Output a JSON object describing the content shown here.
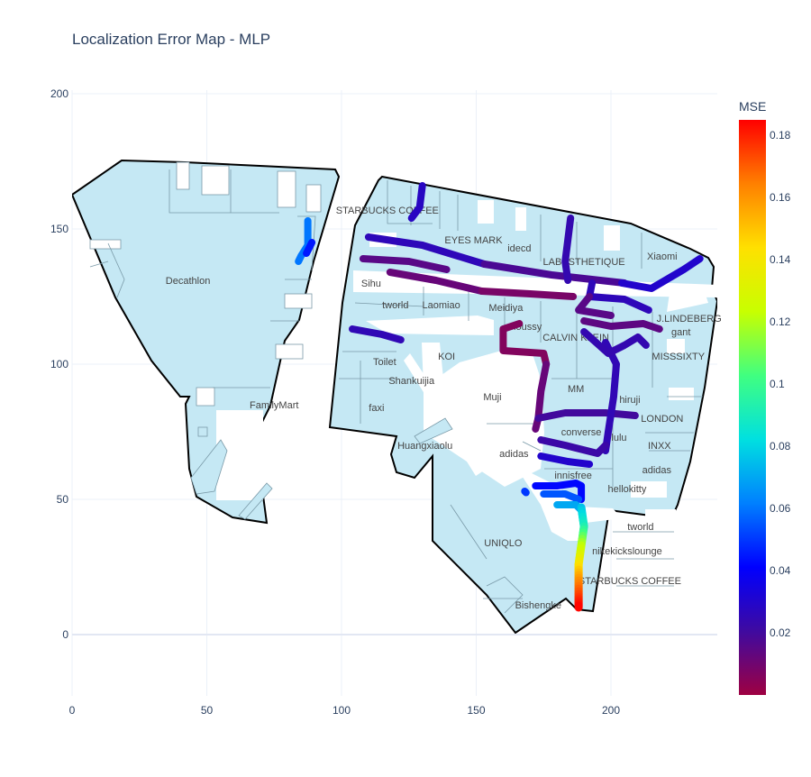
{
  "chart_data": {
    "type": "scatter",
    "title": "Localization Error Map - MLP",
    "xlim": [
      0,
      240
    ],
    "ylim": [
      -25,
      202
    ],
    "x_ticks": [
      0,
      50,
      100,
      150,
      200
    ],
    "y_ticks": [
      0,
      50,
      100,
      150,
      200
    ],
    "grid": true,
    "colorbar": {
      "title": "MSE",
      "min": 0.0,
      "max": 0.185,
      "ticks": [
        0.02,
        0.04,
        0.06,
        0.08,
        0.1,
        0.12,
        0.14,
        0.16,
        0.18
      ],
      "tick_labels": [
        "0.02",
        "0.04",
        "0.06",
        "0.08",
        "0.1",
        "0.12",
        "0.14",
        "0.16",
        "0.18"
      ],
      "colorscale": [
        "#9e0142",
        "#3f0aa0",
        "#0000ff",
        "#0080ff",
        "#00e0e0",
        "#40ff80",
        "#c8ff00",
        "#ffe000",
        "#ff8000",
        "#ff0000"
      ]
    },
    "store_labels": [
      {
        "text": "STARBUCKS COFFEE",
        "x": 117,
        "y": 157
      },
      {
        "text": "EYES MARK",
        "x": 149,
        "y": 146
      },
      {
        "text": "idecd",
        "x": 166,
        "y": 143
      },
      {
        "text": "LABESTHETIQUE",
        "x": 190,
        "y": 138
      },
      {
        "text": "Xiaomi",
        "x": 219,
        "y": 140
      },
      {
        "text": "Decathlon",
        "x": 43,
        "y": 131
      },
      {
        "text": "Sihu",
        "x": 111,
        "y": 130
      },
      {
        "text": "tworld",
        "x": 120,
        "y": 122
      },
      {
        "text": "Laomiao",
        "x": 137,
        "y": 122
      },
      {
        "text": "Meidiya",
        "x": 161,
        "y": 121
      },
      {
        "text": "J.LINDEBERG",
        "x": 229,
        "y": 117
      },
      {
        "text": "gant",
        "x": 226,
        "y": 112
      },
      {
        "text": "moussy",
        "x": 168,
        "y": 114
      },
      {
        "text": "CALVIN KLEIN",
        "x": 187,
        "y": 110
      },
      {
        "text": "KOI",
        "x": 139,
        "y": 103
      },
      {
        "text": "MISSSIXTY",
        "x": 225,
        "y": 103
      },
      {
        "text": "Toilet",
        "x": 116,
        "y": 101
      },
      {
        "text": "Shankuijia",
        "x": 126,
        "y": 94
      },
      {
        "text": "MM",
        "x": 187,
        "y": 91
      },
      {
        "text": "Muji",
        "x": 156,
        "y": 88
      },
      {
        "text": "hiruji",
        "x": 207,
        "y": 87
      },
      {
        "text": "FamilyMart",
        "x": 75,
        "y": 85
      },
      {
        "text": "faxi",
        "x": 113,
        "y": 84
      },
      {
        "text": "LONDON",
        "x": 219,
        "y": 80
      },
      {
        "text": "converse",
        "x": 189,
        "y": 75
      },
      {
        "text": "lulu",
        "x": 203,
        "y": 73
      },
      {
        "text": "Huangxiaolu",
        "x": 131,
        "y": 70
      },
      {
        "text": "INXX",
        "x": 218,
        "y": 70
      },
      {
        "text": "adidas",
        "x": 164,
        "y": 67
      },
      {
        "text": "adidas",
        "x": 217,
        "y": 61
      },
      {
        "text": "innisfree",
        "x": 186,
        "y": 59
      },
      {
        "text": "hellokitty",
        "x": 206,
        "y": 54
      },
      {
        "text": "tworld",
        "x": 211,
        "y": 40
      },
      {
        "text": "nikekickslounge",
        "x": 206,
        "y": 31
      },
      {
        "text": "UNIQLO",
        "x": 160,
        "y": 34
      },
      {
        "text": "STARBUCKS COFFEE",
        "x": 207,
        "y": 20
      },
      {
        "text": "Bishengke",
        "x": 173,
        "y": 11
      }
    ],
    "trajectories": [
      {
        "mse": 0.06,
        "points": [
          [
            87.5,
            153
          ],
          [
            87.5,
            144
          ],
          [
            85,
            140
          ],
          [
            84,
            138
          ]
        ]
      },
      {
        "mse": 0.045,
        "points": [
          [
            89,
            145
          ],
          [
            87,
            141
          ]
        ]
      },
      {
        "mse": 0.028,
        "points": [
          [
            130,
            166
          ],
          [
            129,
            158
          ],
          [
            126,
            154
          ]
        ]
      },
      {
        "mse": 0.026,
        "points": [
          [
            110,
            147
          ],
          [
            130,
            144
          ],
          [
            153,
            137
          ]
        ]
      },
      {
        "mse": 0.018,
        "points": [
          [
            153,
            137
          ],
          [
            178,
            133
          ],
          [
            196,
            131
          ],
          [
            205,
            130
          ]
        ]
      },
      {
        "mse": 0.015,
        "points": [
          [
            108,
            139
          ],
          [
            125,
            138
          ],
          [
            139,
            135
          ]
        ]
      },
      {
        "mse": 0.012,
        "points": [
          [
            118,
            134
          ],
          [
            135,
            131
          ],
          [
            152,
            127
          ]
        ]
      },
      {
        "mse": 0.008,
        "points": [
          [
            152,
            127
          ],
          [
            170,
            126
          ],
          [
            186,
            125
          ]
        ]
      },
      {
        "mse": 0.025,
        "points": [
          [
            104,
            113
          ],
          [
            115,
            111
          ],
          [
            122,
            109
          ]
        ]
      },
      {
        "mse": 0.024,
        "points": [
          [
            185,
            154
          ],
          [
            184,
            146
          ],
          [
            183,
            138
          ],
          [
            184,
            131
          ]
        ]
      },
      {
        "mse": 0.03,
        "points": [
          [
            204,
            130
          ],
          [
            215,
            128
          ],
          [
            227,
            135
          ],
          [
            233,
            139
          ]
        ]
      },
      {
        "mse": 0.026,
        "points": [
          [
            193,
            130
          ],
          [
            192,
            125
          ],
          [
            205,
            124
          ],
          [
            214,
            120
          ]
        ]
      },
      {
        "mse": 0.015,
        "points": [
          [
            192,
            125
          ],
          [
            188,
            120
          ],
          [
            200,
            118
          ]
        ]
      },
      {
        "mse": 0.014,
        "points": [
          [
            190,
            116
          ],
          [
            200,
            114
          ],
          [
            212,
            115
          ],
          [
            218,
            113
          ]
        ]
      },
      {
        "mse": 0.006,
        "points": [
          [
            166,
            115
          ],
          [
            160,
            113
          ],
          [
            160,
            105
          ],
          [
            175,
            104
          ],
          [
            176,
            100
          ]
        ]
      },
      {
        "mse": 0.012,
        "points": [
          [
            176,
            100
          ],
          [
            174,
            90
          ],
          [
            173,
            80
          ],
          [
            172,
            76
          ]
        ]
      },
      {
        "mse": 0.02,
        "points": [
          [
            173,
            80
          ],
          [
            183,
            82
          ],
          [
            198,
            82
          ],
          [
            209,
            81
          ]
        ]
      },
      {
        "mse": 0.025,
        "points": [
          [
            198,
            108
          ],
          [
            202,
            100
          ],
          [
            201,
            88
          ],
          [
            199,
            75
          ],
          [
            198,
            68
          ]
        ]
      },
      {
        "mse": 0.024,
        "points": [
          [
            190,
            112
          ],
          [
            199,
            104
          ],
          [
            205,
            107
          ],
          [
            210,
            110
          ],
          [
            213,
            107
          ]
        ]
      },
      {
        "mse": 0.022,
        "points": [
          [
            174,
            72
          ],
          [
            183,
            70
          ],
          [
            195,
            67
          ],
          [
            198,
            70
          ]
        ]
      },
      {
        "mse": 0.03,
        "points": [
          [
            174,
            66
          ],
          [
            184,
            64
          ],
          [
            192,
            63
          ]
        ]
      },
      {
        "mse": 0.042,
        "points": [
          [
            172,
            55
          ],
          [
            180,
            55
          ],
          [
            187,
            56
          ],
          [
            189,
            55
          ],
          [
            189,
            50
          ]
        ]
      },
      {
        "mse": 0.055,
        "points": [
          [
            175,
            52
          ],
          [
            183,
            52
          ],
          [
            188,
            50
          ]
        ]
      },
      {
        "mse": 0.07,
        "points": [
          [
            180,
            48
          ],
          [
            187,
            48
          ],
          [
            189,
            46
          ]
        ]
      },
      {
        "mse": 0.05,
        "points": [
          [
            168,
            53
          ],
          [
            168.5,
            52.5
          ]
        ]
      },
      {
        "gradient": true,
        "points": [
          [
            189,
            47,
            0.075
          ],
          [
            190,
            40,
            0.09
          ],
          [
            189,
            33,
            0.12
          ],
          [
            188,
            26,
            0.14
          ],
          [
            188,
            20,
            0.16
          ],
          [
            188,
            14,
            0.175
          ],
          [
            188,
            10,
            0.185
          ]
        ]
      }
    ]
  }
}
